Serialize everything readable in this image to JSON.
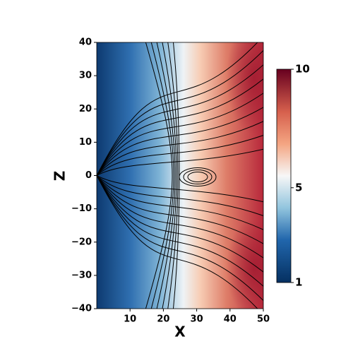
{
  "chart_data": {
    "type": "heatmap",
    "xlabel": "X",
    "ylabel": "Z",
    "xlim": [
      0,
      50
    ],
    "xticks": [
      10,
      20,
      30,
      40,
      50
    ],
    "ylim": [
      -40,
      40
    ],
    "yticks": [
      {
        "value": -40,
        "label": "−40"
      },
      {
        "value": -30,
        "label": "−30"
      },
      {
        "value": -20,
        "label": "−20"
      },
      {
        "value": -10,
        "label": "−10"
      },
      0,
      10,
      20,
      30,
      40
    ],
    "colorbar": {
      "lim": [
        1,
        10
      ],
      "ticks": [
        1,
        5,
        10
      ]
    }
  }
}
